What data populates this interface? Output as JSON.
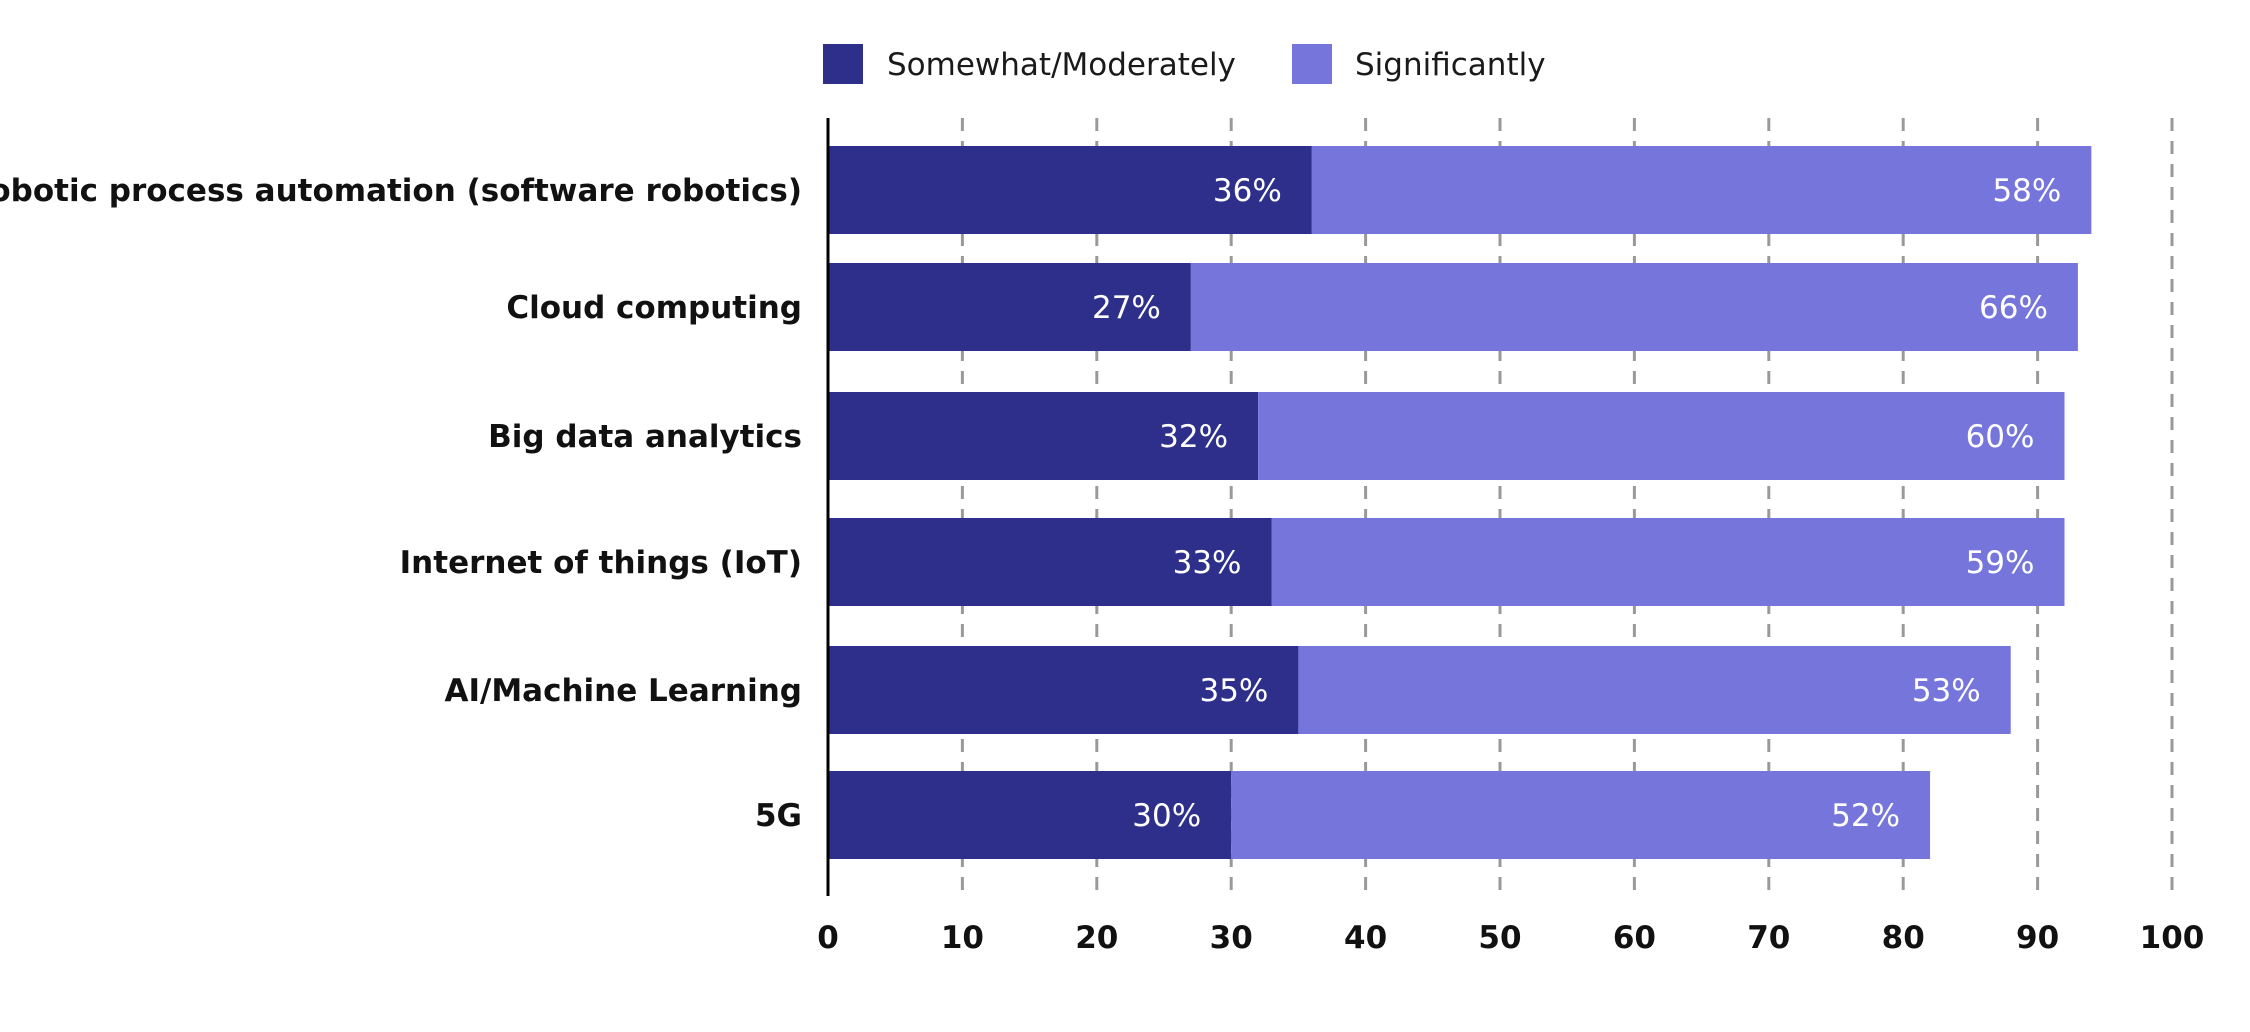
{
  "chart_data": {
    "type": "bar",
    "orientation": "horizontal",
    "stacked": true,
    "categories": [
      "Robotic process automation (software robotics)",
      "Cloud computing",
      "Big data analytics",
      "Internet of things (IoT)",
      "AI/Machine Learning",
      "5G"
    ],
    "series": [
      {
        "name": "Somewhat/Moderately",
        "color": "#2e2f8a",
        "values": [
          36,
          27,
          32,
          33,
          35,
          30
        ],
        "labels": [
          "36%",
          "27%",
          "32%",
          "33%",
          "35%",
          "30%"
        ]
      },
      {
        "name": "Significantly",
        "color": "#7575db",
        "values": [
          58,
          66,
          60,
          59,
          53,
          52
        ],
        "labels": [
          "58%",
          "66%",
          "60%",
          "59%",
          "53%",
          "52%"
        ]
      }
    ],
    "xlim": [
      0,
      100
    ],
    "xticks": [
      "0",
      "10",
      "20",
      "30",
      "40",
      "50",
      "60",
      "70",
      "80",
      "90",
      "100"
    ],
    "grid": "vertical dashed",
    "legend": "top"
  }
}
